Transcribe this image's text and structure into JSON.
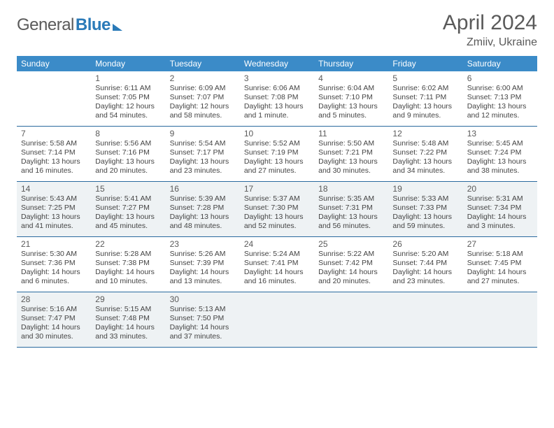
{
  "logo": {
    "part1": "General",
    "part2": "Blue"
  },
  "title": "April 2024",
  "location": "Zmiiv, Ukraine",
  "colors": {
    "header_bg": "#3b8bc8",
    "header_text": "#ffffff",
    "rule": "#2a6a9e",
    "shaded_bg": "#eef2f4",
    "text": "#444444",
    "title_text": "#5a5a5a"
  },
  "day_headers": [
    "Sunday",
    "Monday",
    "Tuesday",
    "Wednesday",
    "Thursday",
    "Friday",
    "Saturday"
  ],
  "weeks": [
    {
      "shaded": false,
      "cells": [
        {
          "daynum": "",
          "sunrise": "",
          "sunset": "",
          "daylight1": "",
          "daylight2": ""
        },
        {
          "daynum": "1",
          "sunrise": "Sunrise: 6:11 AM",
          "sunset": "Sunset: 7:05 PM",
          "daylight1": "Daylight: 12 hours",
          "daylight2": "and 54 minutes."
        },
        {
          "daynum": "2",
          "sunrise": "Sunrise: 6:09 AM",
          "sunset": "Sunset: 7:07 PM",
          "daylight1": "Daylight: 12 hours",
          "daylight2": "and 58 minutes."
        },
        {
          "daynum": "3",
          "sunrise": "Sunrise: 6:06 AM",
          "sunset": "Sunset: 7:08 PM",
          "daylight1": "Daylight: 13 hours",
          "daylight2": "and 1 minute."
        },
        {
          "daynum": "4",
          "sunrise": "Sunrise: 6:04 AM",
          "sunset": "Sunset: 7:10 PM",
          "daylight1": "Daylight: 13 hours",
          "daylight2": "and 5 minutes."
        },
        {
          "daynum": "5",
          "sunrise": "Sunrise: 6:02 AM",
          "sunset": "Sunset: 7:11 PM",
          "daylight1": "Daylight: 13 hours",
          "daylight2": "and 9 minutes."
        },
        {
          "daynum": "6",
          "sunrise": "Sunrise: 6:00 AM",
          "sunset": "Sunset: 7:13 PM",
          "daylight1": "Daylight: 13 hours",
          "daylight2": "and 12 minutes."
        }
      ]
    },
    {
      "shaded": false,
      "cells": [
        {
          "daynum": "7",
          "sunrise": "Sunrise: 5:58 AM",
          "sunset": "Sunset: 7:14 PM",
          "daylight1": "Daylight: 13 hours",
          "daylight2": "and 16 minutes."
        },
        {
          "daynum": "8",
          "sunrise": "Sunrise: 5:56 AM",
          "sunset": "Sunset: 7:16 PM",
          "daylight1": "Daylight: 13 hours",
          "daylight2": "and 20 minutes."
        },
        {
          "daynum": "9",
          "sunrise": "Sunrise: 5:54 AM",
          "sunset": "Sunset: 7:17 PM",
          "daylight1": "Daylight: 13 hours",
          "daylight2": "and 23 minutes."
        },
        {
          "daynum": "10",
          "sunrise": "Sunrise: 5:52 AM",
          "sunset": "Sunset: 7:19 PM",
          "daylight1": "Daylight: 13 hours",
          "daylight2": "and 27 minutes."
        },
        {
          "daynum": "11",
          "sunrise": "Sunrise: 5:50 AM",
          "sunset": "Sunset: 7:21 PM",
          "daylight1": "Daylight: 13 hours",
          "daylight2": "and 30 minutes."
        },
        {
          "daynum": "12",
          "sunrise": "Sunrise: 5:48 AM",
          "sunset": "Sunset: 7:22 PM",
          "daylight1": "Daylight: 13 hours",
          "daylight2": "and 34 minutes."
        },
        {
          "daynum": "13",
          "sunrise": "Sunrise: 5:45 AM",
          "sunset": "Sunset: 7:24 PM",
          "daylight1": "Daylight: 13 hours",
          "daylight2": "and 38 minutes."
        }
      ]
    },
    {
      "shaded": true,
      "cells": [
        {
          "daynum": "14",
          "sunrise": "Sunrise: 5:43 AM",
          "sunset": "Sunset: 7:25 PM",
          "daylight1": "Daylight: 13 hours",
          "daylight2": "and 41 minutes."
        },
        {
          "daynum": "15",
          "sunrise": "Sunrise: 5:41 AM",
          "sunset": "Sunset: 7:27 PM",
          "daylight1": "Daylight: 13 hours",
          "daylight2": "and 45 minutes."
        },
        {
          "daynum": "16",
          "sunrise": "Sunrise: 5:39 AM",
          "sunset": "Sunset: 7:28 PM",
          "daylight1": "Daylight: 13 hours",
          "daylight2": "and 48 minutes."
        },
        {
          "daynum": "17",
          "sunrise": "Sunrise: 5:37 AM",
          "sunset": "Sunset: 7:30 PM",
          "daylight1": "Daylight: 13 hours",
          "daylight2": "and 52 minutes."
        },
        {
          "daynum": "18",
          "sunrise": "Sunrise: 5:35 AM",
          "sunset": "Sunset: 7:31 PM",
          "daylight1": "Daylight: 13 hours",
          "daylight2": "and 56 minutes."
        },
        {
          "daynum": "19",
          "sunrise": "Sunrise: 5:33 AM",
          "sunset": "Sunset: 7:33 PM",
          "daylight1": "Daylight: 13 hours",
          "daylight2": "and 59 minutes."
        },
        {
          "daynum": "20",
          "sunrise": "Sunrise: 5:31 AM",
          "sunset": "Sunset: 7:34 PM",
          "daylight1": "Daylight: 14 hours",
          "daylight2": "and 3 minutes."
        }
      ]
    },
    {
      "shaded": false,
      "cells": [
        {
          "daynum": "21",
          "sunrise": "Sunrise: 5:30 AM",
          "sunset": "Sunset: 7:36 PM",
          "daylight1": "Daylight: 14 hours",
          "daylight2": "and 6 minutes."
        },
        {
          "daynum": "22",
          "sunrise": "Sunrise: 5:28 AM",
          "sunset": "Sunset: 7:38 PM",
          "daylight1": "Daylight: 14 hours",
          "daylight2": "and 10 minutes."
        },
        {
          "daynum": "23",
          "sunrise": "Sunrise: 5:26 AM",
          "sunset": "Sunset: 7:39 PM",
          "daylight1": "Daylight: 14 hours",
          "daylight2": "and 13 minutes."
        },
        {
          "daynum": "24",
          "sunrise": "Sunrise: 5:24 AM",
          "sunset": "Sunset: 7:41 PM",
          "daylight1": "Daylight: 14 hours",
          "daylight2": "and 16 minutes."
        },
        {
          "daynum": "25",
          "sunrise": "Sunrise: 5:22 AM",
          "sunset": "Sunset: 7:42 PM",
          "daylight1": "Daylight: 14 hours",
          "daylight2": "and 20 minutes."
        },
        {
          "daynum": "26",
          "sunrise": "Sunrise: 5:20 AM",
          "sunset": "Sunset: 7:44 PM",
          "daylight1": "Daylight: 14 hours",
          "daylight2": "and 23 minutes."
        },
        {
          "daynum": "27",
          "sunrise": "Sunrise: 5:18 AM",
          "sunset": "Sunset: 7:45 PM",
          "daylight1": "Daylight: 14 hours",
          "daylight2": "and 27 minutes."
        }
      ]
    },
    {
      "shaded": true,
      "cells": [
        {
          "daynum": "28",
          "sunrise": "Sunrise: 5:16 AM",
          "sunset": "Sunset: 7:47 PM",
          "daylight1": "Daylight: 14 hours",
          "daylight2": "and 30 minutes."
        },
        {
          "daynum": "29",
          "sunrise": "Sunrise: 5:15 AM",
          "sunset": "Sunset: 7:48 PM",
          "daylight1": "Daylight: 14 hours",
          "daylight2": "and 33 minutes."
        },
        {
          "daynum": "30",
          "sunrise": "Sunrise: 5:13 AM",
          "sunset": "Sunset: 7:50 PM",
          "daylight1": "Daylight: 14 hours",
          "daylight2": "and 37 minutes."
        },
        {
          "daynum": "",
          "sunrise": "",
          "sunset": "",
          "daylight1": "",
          "daylight2": ""
        },
        {
          "daynum": "",
          "sunrise": "",
          "sunset": "",
          "daylight1": "",
          "daylight2": ""
        },
        {
          "daynum": "",
          "sunrise": "",
          "sunset": "",
          "daylight1": "",
          "daylight2": ""
        },
        {
          "daynum": "",
          "sunrise": "",
          "sunset": "",
          "daylight1": "",
          "daylight2": ""
        }
      ]
    }
  ]
}
